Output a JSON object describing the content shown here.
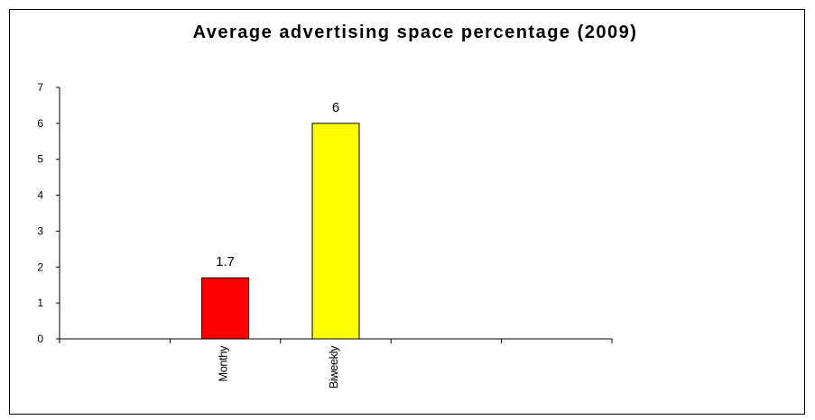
{
  "chart_data": {
    "type": "bar",
    "title": "Average advertising space percentage (2009)",
    "xlabel": "",
    "ylabel": "",
    "categories": [
      "",
      "Monthy",
      "Biweekly",
      "",
      ""
    ],
    "values": [
      null,
      1.7,
      6,
      null,
      null
    ],
    "data_labels": [
      "",
      "1.7",
      "6",
      "",
      ""
    ],
    "colors": [
      "#ff0000",
      "#ff0000",
      "#ffff00",
      "#ff0000",
      "#ff0000"
    ],
    "ylim": [
      0,
      7
    ],
    "yticks": [
      0,
      1,
      2,
      3,
      4,
      5,
      6,
      7
    ],
    "grid": false,
    "legend": "none"
  }
}
